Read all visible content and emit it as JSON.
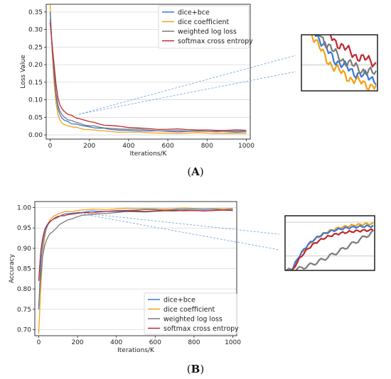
{
  "colors": {
    "dice_bce": "#3a78d8",
    "dice_coefficient": "#f5a010",
    "weighted_log_loss": "#7a7a7a",
    "softmax_cross_entropy": "#c0282e",
    "connector": "#6fa3d8"
  },
  "chart_data": [
    {
      "panel": "A",
      "type": "line",
      "panel_label_parts": [
        "(",
        "A",
        ")"
      ],
      "xlabel": "Iterations/K",
      "ylabel": "Loss Value",
      "xlim": [
        -20,
        1020
      ],
      "ylim": [
        -0.012,
        0.372
      ],
      "xticks": [
        0,
        200,
        400,
        600,
        800,
        1000
      ],
      "yticks": [
        0.0,
        0.05,
        0.1,
        0.15,
        0.2,
        0.25,
        0.3,
        0.35
      ],
      "ytick_labels": [
        "0.00",
        "0.05",
        "0.10",
        "0.15",
        "0.20",
        "0.25",
        "0.30",
        "0.35"
      ],
      "grid": "horizontal",
      "legend_position": "top-right",
      "inset": "zoom of region around x=100",
      "x": [
        0,
        10,
        20,
        30,
        40,
        50,
        60,
        70,
        80,
        100,
        120,
        150,
        200,
        250,
        300,
        400,
        500,
        600,
        700,
        800,
        900,
        1000
      ],
      "series": [
        {
          "name": "dice+bce",
          "color_key": "dice_bce",
          "values": [
            0.35,
            0.25,
            0.17,
            0.11,
            0.075,
            0.058,
            0.048,
            0.043,
            0.04,
            0.035,
            0.031,
            0.028,
            0.023,
            0.019,
            0.016,
            0.013,
            0.011,
            0.01,
            0.01,
            0.01,
            0.009,
            0.009
          ]
        },
        {
          "name": "dice coefficient",
          "color_key": "dice_coefficient",
          "values": [
            0.37,
            0.24,
            0.15,
            0.09,
            0.058,
            0.042,
            0.034,
            0.03,
            0.028,
            0.025,
            0.022,
            0.019,
            0.015,
            0.012,
            0.01,
            0.008,
            0.006,
            0.005,
            0.005,
            0.005,
            0.004,
            0.004
          ]
        },
        {
          "name": "weighted log loss",
          "color_key": "weighted_log_loss",
          "values": [
            0.33,
            0.25,
            0.18,
            0.12,
            0.085,
            0.068,
            0.058,
            0.052,
            0.047,
            0.042,
            0.038,
            0.033,
            0.026,
            0.022,
            0.019,
            0.016,
            0.014,
            0.012,
            0.011,
            0.01,
            0.01,
            0.01
          ]
        },
        {
          "name": "softmax cross entropy",
          "color_key": "softmax_cross_entropy",
          "values": [
            0.32,
            0.26,
            0.2,
            0.145,
            0.105,
            0.085,
            0.075,
            0.068,
            0.063,
            0.057,
            0.052,
            0.046,
            0.038,
            0.031,
            0.027,
            0.021,
            0.018,
            0.016,
            0.015,
            0.014,
            0.013,
            0.013
          ]
        }
      ]
    },
    {
      "panel": "B",
      "type": "line",
      "panel_label_parts": [
        "(",
        "B",
        ")"
      ],
      "xlabel": "Iterations/K",
      "ylabel": "Accuracy",
      "xlim": [
        -20,
        1020
      ],
      "ylim": [
        0.685,
        1.015
      ],
      "xticks": [
        0,
        200,
        400,
        600,
        800,
        1000
      ],
      "yticks": [
        0.7,
        0.75,
        0.8,
        0.85,
        0.9,
        0.95,
        1.0
      ],
      "ytick_labels": [
        "0.70",
        "0.75",
        "0.80",
        "0.85",
        "0.90",
        "0.95",
        "1.00"
      ],
      "grid": "horizontal",
      "legend_position": "bottom-right",
      "inset": "zoom of region around x=100",
      "x": [
        0,
        10,
        20,
        30,
        40,
        50,
        60,
        70,
        80,
        100,
        120,
        150,
        200,
        250,
        300,
        400,
        500,
        600,
        700,
        800,
        900,
        1000
      ],
      "series": [
        {
          "name": "dice+bce",
          "color_key": "dice_bce",
          "values": [
            0.75,
            0.86,
            0.91,
            0.935,
            0.95,
            0.96,
            0.966,
            0.97,
            0.974,
            0.979,
            0.982,
            0.985,
            0.988,
            0.99,
            0.991,
            0.993,
            0.994,
            0.995,
            0.995,
            0.996,
            0.996,
            0.996
          ]
        },
        {
          "name": "dice coefficient",
          "color_key": "dice_coefficient",
          "values": [
            0.69,
            0.8,
            0.88,
            0.925,
            0.95,
            0.963,
            0.971,
            0.976,
            0.98,
            0.985,
            0.988,
            0.99,
            0.993,
            0.995,
            0.996,
            0.997,
            0.998,
            0.998,
            0.998,
            0.998,
            0.998,
            0.998
          ]
        },
        {
          "name": "weighted log loss",
          "color_key": "weighted_log_loss",
          "values": [
            0.76,
            0.83,
            0.88,
            0.905,
            0.92,
            0.93,
            0.937,
            0.94,
            0.945,
            0.955,
            0.962,
            0.97,
            0.978,
            0.982,
            0.985,
            0.988,
            0.99,
            0.991,
            0.992,
            0.993,
            0.993,
            0.993
          ]
        },
        {
          "name": "softmax cross entropy",
          "color_key": "softmax_cross_entropy",
          "values": [
            0.82,
            0.89,
            0.925,
            0.945,
            0.955,
            0.962,
            0.967,
            0.97,
            0.973,
            0.977,
            0.98,
            0.983,
            0.986,
            0.988,
            0.989,
            0.991,
            0.992,
            0.992,
            0.993,
            0.993,
            0.993,
            0.993
          ]
        }
      ]
    }
  ]
}
